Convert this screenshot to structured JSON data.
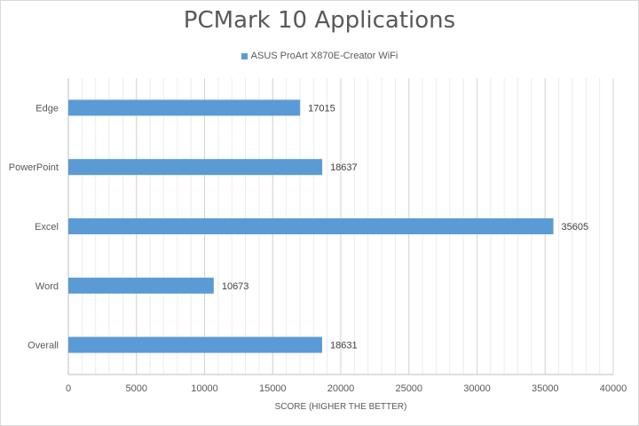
{
  "chart_data": {
    "type": "bar",
    "orientation": "horizontal",
    "title": "PCMark 10 Applications",
    "categories": [
      "Edge",
      "PowerPoint",
      "Excel",
      "Word",
      "Overall"
    ],
    "series": [
      {
        "name": "ASUS ProArt X870E-Creator WiFi",
        "values": [
          17015,
          18637,
          35605,
          10673,
          18631
        ],
        "color": "#5b9bd5"
      }
    ],
    "xlabel": "SCORE (HIGHER THE BETTER)",
    "ylabel": "",
    "xlim": [
      0,
      40000
    ],
    "x_ticks": [
      "0",
      "5000",
      "10000",
      "15000",
      "20000",
      "25000",
      "30000",
      "35000",
      "40000"
    ],
    "minor_gridlines_every": 1000,
    "grid": true,
    "legend_position": "top",
    "data_labels": true
  }
}
